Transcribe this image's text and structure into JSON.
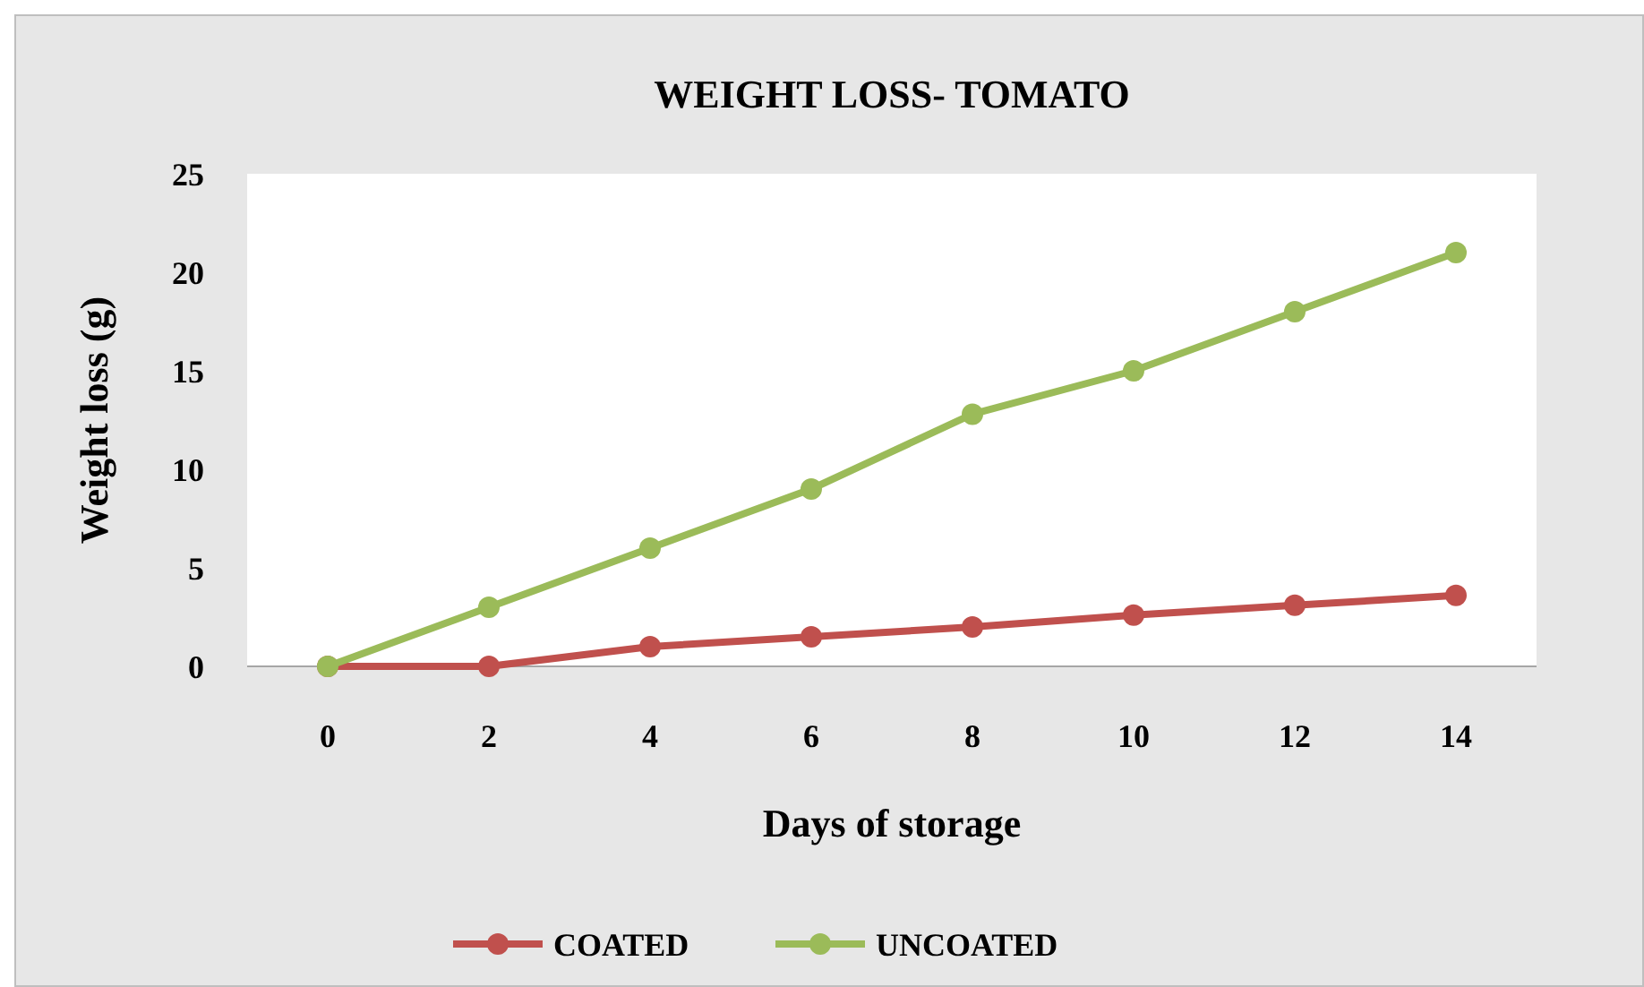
{
  "chart_data": {
    "type": "line",
    "title": "WEIGHT LOSS- TOMATO",
    "xlabel": "Days of storage",
    "ylabel": "Weight loss (g)",
    "categories": [
      "0",
      "2",
      "4",
      "6",
      "8",
      "10",
      "12",
      "14"
    ],
    "series": [
      {
        "name": "COATED",
        "color": "#c0504d",
        "values": [
          0,
          0,
          1,
          1.5,
          2,
          2.6,
          3.1,
          3.6
        ]
      },
      {
        "name": "UNCOATED",
        "color": "#9bbb59",
        "values": [
          0,
          3,
          6,
          9,
          12.8,
          15,
          18,
          21
        ]
      }
    ],
    "ylim": [
      0,
      25
    ],
    "yticks": [
      0,
      5,
      10,
      15,
      20,
      25
    ],
    "grid": false,
    "legend": "bottom",
    "marker": "circle",
    "line_style": "solid"
  }
}
